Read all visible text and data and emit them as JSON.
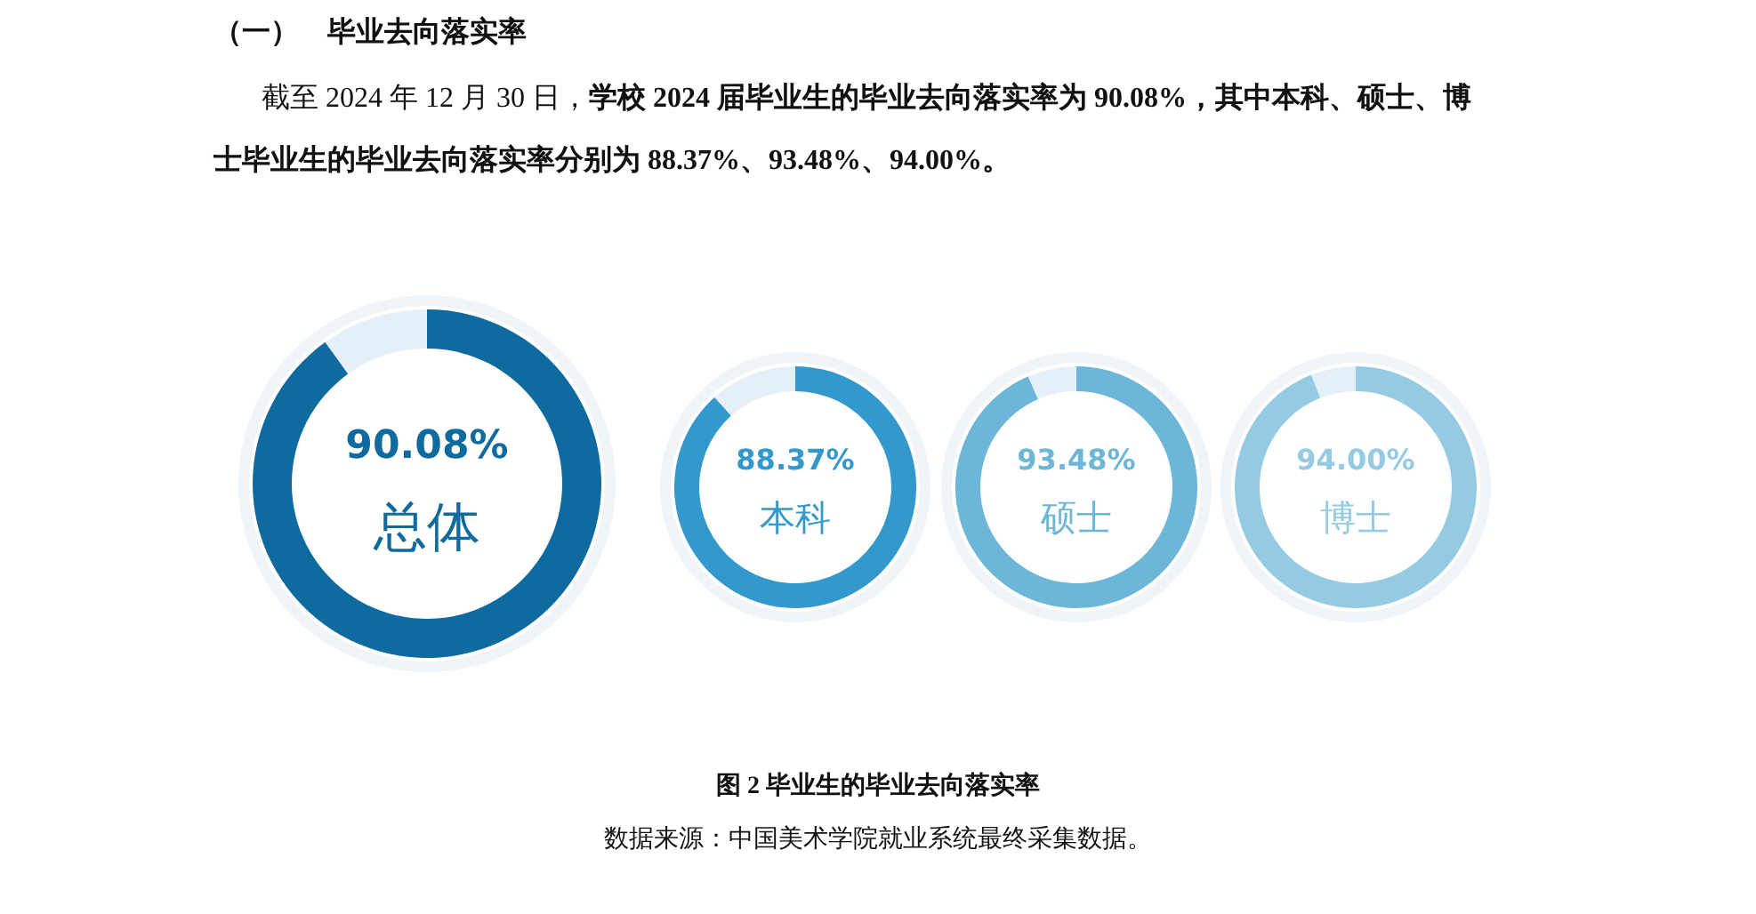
{
  "chart_data": [
    {
      "type": "other",
      "title": "（一）　毕业去向落实率",
      "annotations": [
        "截至 2024 年 12 月 30 日，**学校 2024 届毕业生的毕业去向落实率为 90.08%，其中本科、硕士、博士毕业生的毕业去向落实率分别为 88.37%、93.48%、94.00%。**",
        "**图 2 毕业生的毕业去向落实率**",
        "数据来源：中国美术学院就业系统最终采集数据。"
      ]
    },
    {
      "type": "donut",
      "title": "总体",
      "categories": [
        null,
        null
      ],
      "values": [
        90.08,
        9.92
      ],
      "value_labels": [
        "90.08%",
        null
      ],
      "colors": [
        "#0f6aa0",
        "#e4eff7"
      ]
    },
    {
      "type": "donut",
      "title": "本科",
      "categories": [
        null,
        null
      ],
      "values": [
        88.37,
        11.63
      ],
      "value_labels": [
        "88.37%",
        null
      ],
      "colors": [
        "#3399cc",
        "#e4eff7"
      ]
    },
    {
      "type": "donut",
      "title": "硕士",
      "categories": [
        null,
        null
      ],
      "values": [
        93.48,
        6.52
      ],
      "value_labels": [
        "93.48%",
        null
      ],
      "colors": [
        "#6cb6d8",
        "#e4eff7"
      ]
    },
    {
      "type": "donut",
      "title": "博士",
      "categories": [
        null,
        null
      ],
      "values": [
        94.0,
        6.0
      ],
      "value_labels": [
        "94.00%",
        null
      ],
      "colors": [
        "#94cbe3",
        "#e4eff7"
      ]
    }
  ]
}
